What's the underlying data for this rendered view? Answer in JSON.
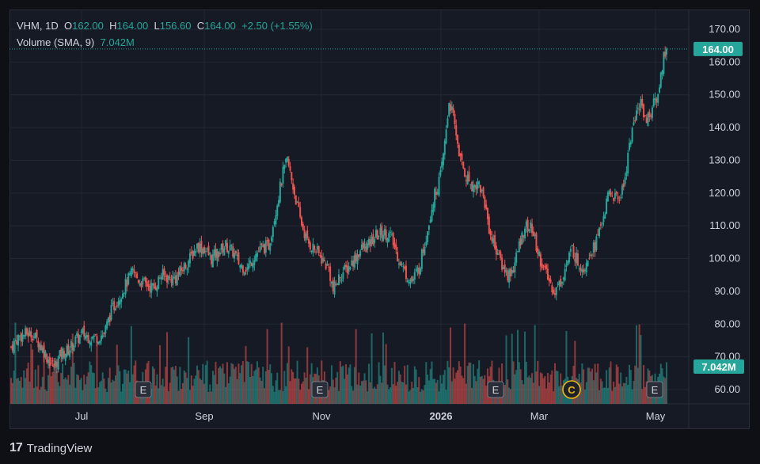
{
  "legend": {
    "symbol": "VHM",
    "interval": "1D",
    "o_label": "O",
    "open": "162.00",
    "h_label": "H",
    "high": "164.00",
    "l_label": "L",
    "low": "156.60",
    "c_label": "C",
    "close": "164.00",
    "change": "+2.50 (+1.55%)",
    "volume_label": "Volume (SMA, 9)",
    "volume_value": "7.042M"
  },
  "branding": {
    "name": "TradingView",
    "logo_mark": "17"
  },
  "colors": {
    "up": "#26a69a",
    "down": "#ef5350",
    "background": "#161a25",
    "grid": "#232734",
    "text": "#d1d4dc"
  },
  "chart_data": {
    "type": "candlestick",
    "title": "VHM, 1D",
    "y_ticks": [
      "170.00",
      "160.00",
      "150.00",
      "140.00",
      "130.00",
      "120.00",
      "110.00",
      "100.00",
      "90.00",
      "80.00",
      "70.00",
      "60.00"
    ],
    "ylim": [
      56,
      174
    ],
    "x_ticks": [
      "Jul",
      "Sep",
      "Nov",
      "2026",
      "Mar",
      "May"
    ],
    "last_price_label": "164.00",
    "volume_label": "7.042M",
    "events": [
      {
        "type": "E",
        "label": "E"
      },
      {
        "type": "E",
        "label": "E"
      },
      {
        "type": "E",
        "label": "E"
      },
      {
        "type": "C",
        "label": "C"
      },
      {
        "type": "E",
        "label": "E"
      }
    ],
    "series_close": [
      {
        "t": 0,
        "c": 73
      },
      {
        "t": 5,
        "c": 76
      },
      {
        "t": 10,
        "c": 77
      },
      {
        "t": 15,
        "c": 77
      },
      {
        "t": 20,
        "c": 74
      },
      {
        "t": 25,
        "c": 70
      },
      {
        "t": 30,
        "c": 67
      },
      {
        "t": 35,
        "c": 71
      },
      {
        "t": 40,
        "c": 72
      },
      {
        "t": 45,
        "c": 75
      },
      {
        "t": 50,
        "c": 77
      },
      {
        "t": 55,
        "c": 76
      },
      {
        "t": 60,
        "c": 76
      },
      {
        "t": 65,
        "c": 77
      },
      {
        "t": 70,
        "c": 84
      },
      {
        "t": 75,
        "c": 88
      },
      {
        "t": 80,
        "c": 92
      },
      {
        "t": 85,
        "c": 96
      },
      {
        "t": 90,
        "c": 93
      },
      {
        "t": 95,
        "c": 92
      },
      {
        "t": 100,
        "c": 91
      },
      {
        "t": 105,
        "c": 95
      },
      {
        "t": 110,
        "c": 94
      },
      {
        "t": 115,
        "c": 94
      },
      {
        "t": 120,
        "c": 97
      },
      {
        "t": 125,
        "c": 100
      },
      {
        "t": 130,
        "c": 104
      },
      {
        "t": 135,
        "c": 103
      },
      {
        "t": 140,
        "c": 100
      },
      {
        "t": 145,
        "c": 102
      },
      {
        "t": 150,
        "c": 104
      },
      {
        "t": 155,
        "c": 102
      },
      {
        "t": 160,
        "c": 98
      },
      {
        "t": 165,
        "c": 97
      },
      {
        "t": 170,
        "c": 101
      },
      {
        "t": 175,
        "c": 103
      },
      {
        "t": 180,
        "c": 104
      },
      {
        "t": 185,
        "c": 115
      },
      {
        "t": 190,
        "c": 126
      },
      {
        "t": 193,
        "c": 130
      },
      {
        "t": 197,
        "c": 122
      },
      {
        "t": 202,
        "c": 112
      },
      {
        "t": 207,
        "c": 105
      },
      {
        "t": 212,
        "c": 103
      },
      {
        "t": 217,
        "c": 100
      },
      {
        "t": 222,
        "c": 97
      },
      {
        "t": 225,
        "c": 90
      },
      {
        "t": 230,
        "c": 95
      },
      {
        "t": 235,
        "c": 97
      },
      {
        "t": 240,
        "c": 100
      },
      {
        "t": 245,
        "c": 103
      },
      {
        "t": 250,
        "c": 104
      },
      {
        "t": 255,
        "c": 107
      },
      {
        "t": 260,
        "c": 108
      },
      {
        "t": 265,
        "c": 107
      },
      {
        "t": 270,
        "c": 101
      },
      {
        "t": 275,
        "c": 96
      },
      {
        "t": 280,
        "c": 93
      },
      {
        "t": 285,
        "c": 97
      },
      {
        "t": 290,
        "c": 107
      },
      {
        "t": 295,
        "c": 118
      },
      {
        "t": 300,
        "c": 125
      },
      {
        "t": 303,
        "c": 135
      },
      {
        "t": 306,
        "c": 148
      },
      {
        "t": 308,
        "c": 145
      },
      {
        "t": 311,
        "c": 138
      },
      {
        "t": 314,
        "c": 130
      },
      {
        "t": 318,
        "c": 125
      },
      {
        "t": 323,
        "c": 122
      },
      {
        "t": 327,
        "c": 123
      },
      {
        "t": 331,
        "c": 117
      },
      {
        "t": 335,
        "c": 107
      },
      {
        "t": 339,
        "c": 103
      },
      {
        "t": 343,
        "c": 98
      },
      {
        "t": 347,
        "c": 95
      },
      {
        "t": 351,
        "c": 97
      },
      {
        "t": 355,
        "c": 104
      },
      {
        "t": 359,
        "c": 110
      },
      {
        "t": 364,
        "c": 109
      },
      {
        "t": 368,
        "c": 102
      },
      {
        "t": 372,
        "c": 97
      },
      {
        "t": 376,
        "c": 93
      },
      {
        "t": 380,
        "c": 90
      },
      {
        "t": 384,
        "c": 93
      },
      {
        "t": 388,
        "c": 98
      },
      {
        "t": 392,
        "c": 103
      },
      {
        "t": 396,
        "c": 99
      },
      {
        "t": 400,
        "c": 97
      },
      {
        "t": 404,
        "c": 102
      },
      {
        "t": 408,
        "c": 104
      },
      {
        "t": 412,
        "c": 110
      },
      {
        "t": 418,
        "c": 120
      },
      {
        "t": 424,
        "c": 118
      },
      {
        "t": 428,
        "c": 122
      },
      {
        "t": 432,
        "c": 135
      },
      {
        "t": 436,
        "c": 143
      },
      {
        "t": 440,
        "c": 148
      },
      {
        "t": 444,
        "c": 142
      },
      {
        "t": 448,
        "c": 146
      },
      {
        "t": 452,
        "c": 150
      },
      {
        "t": 456,
        "c": 162
      },
      {
        "t": 458,
        "c": 164
      }
    ]
  }
}
